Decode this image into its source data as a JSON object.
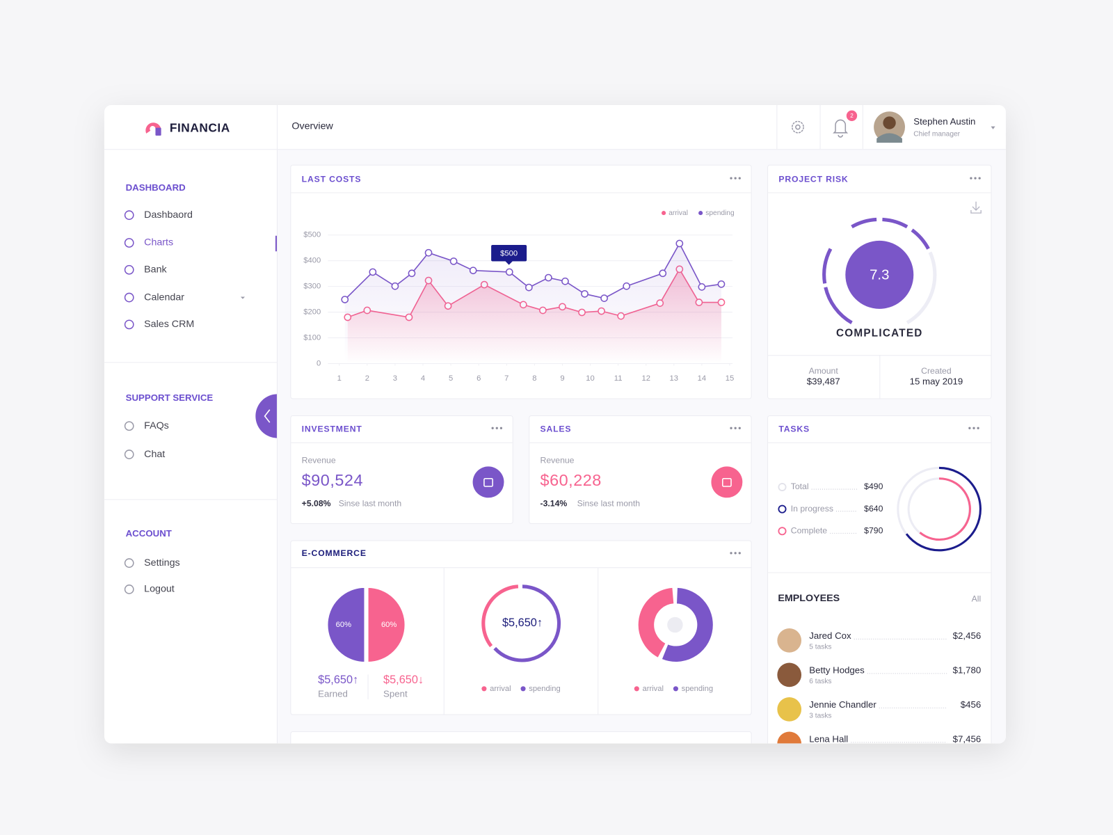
{
  "brand": "FINANCIA",
  "header": {
    "title": "Overview",
    "notifications": "2",
    "user": {
      "name": "Stephen Austin",
      "role": "Chief manager"
    }
  },
  "sidebar": {
    "sections": [
      {
        "title": "DASHBOARD",
        "items": [
          "Dashbaord",
          "Charts",
          "Bank",
          "Calendar",
          "Sales CRM"
        ]
      },
      {
        "title": "SUPPORT SERVICE",
        "items": [
          "FAQs",
          "Chat"
        ]
      },
      {
        "title": "ACCOUNT",
        "items": [
          "Settings",
          "Logout"
        ]
      }
    ]
  },
  "last_costs": {
    "type": "line",
    "title": "LAST COSTS",
    "tooltip": "$500",
    "xlim": [
      1,
      15
    ],
    "xticks": [
      1,
      2,
      3,
      4,
      5,
      6,
      7,
      8,
      9,
      10,
      11,
      12,
      13,
      14,
      15
    ],
    "ylim": [
      0,
      500
    ],
    "yticks": [
      0,
      {
        "value": 100,
        "label": "$100"
      },
      {
        "value": 200,
        "label": "$200"
      },
      {
        "value": 300,
        "label": "$300"
      },
      {
        "value": 400,
        "label": "$400"
      },
      {
        "value": 500,
        "label": "$500"
      }
    ],
    "grid": true,
    "series": [
      {
        "name": "arrival",
        "color": "#f7638f",
        "x": [
          1.3,
          2.0,
          3.5,
          4.2,
          4.9,
          6.2,
          7.6,
          8.3,
          9.0,
          9.7,
          10.4,
          11.1,
          12.5,
          13.2,
          13.9,
          14.7
        ],
        "values": [
          180,
          207,
          180,
          323,
          224,
          307,
          229,
          207,
          221,
          199,
          204,
          185,
          235,
          367,
          238,
          238
        ]
      },
      {
        "name": "spending",
        "color": "#7a56c8",
        "x": [
          1.2,
          2.2,
          3.0,
          3.6,
          4.2,
          5.1,
          5.8,
          7.1,
          7.8,
          8.5,
          9.1,
          9.8,
          10.5,
          11.3,
          12.6,
          13.2,
          14.0,
          14.7
        ],
        "values": [
          249,
          356,
          301,
          351,
          431,
          398,
          362,
          356,
          296,
          334,
          320,
          271,
          254,
          301,
          351,
          467,
          298,
          309
        ]
      }
    ]
  },
  "project_risk": {
    "title": "PROJECT RISK",
    "score": "7.3",
    "status": "COMPLICATED",
    "amount_label": "Amount",
    "amount": "$39,487",
    "created_label": "Created",
    "created": "15 may 2019"
  },
  "investment": {
    "title": "INVESTMENT",
    "label": "Revenue",
    "value": "$90,524",
    "change": "+5.08%",
    "note": "Sinse last month"
  },
  "sales": {
    "title": "SALES",
    "label": "Revenue",
    "value": "$60,228",
    "change": "-3.14%",
    "note": "Sinse last month"
  },
  "ecommerce": {
    "title": "E-COMMERCE",
    "pie": {
      "type": "pie",
      "values": [
        60,
        60
      ],
      "value_labels": [
        "60%",
        "60%"
      ],
      "colors": [
        "#f7638f",
        "#7a56c8"
      ]
    },
    "earned": "$5,650↑",
    "earned_label": "Earned",
    "spent": "$5,650↓",
    "spent_label": "Spent",
    "ring_value": "$5,650↑",
    "legend": [
      "arrival",
      "spending"
    ]
  },
  "tasks": {
    "title": "TASKS",
    "items": [
      {
        "label": "Total",
        "value": "$490"
      },
      {
        "label": "In progress",
        "value": "$640"
      },
      {
        "label": "Complete",
        "value": "$790"
      }
    ]
  },
  "employees": {
    "title": "EMPLOYEES",
    "link": "All",
    "rows": [
      {
        "name": "Jared Cox",
        "tasks": "5 tasks",
        "value": "$2,456"
      },
      {
        "name": "Betty Hodges",
        "tasks": "6 tasks",
        "value": "$1,780"
      },
      {
        "name": "Jennie Chandler",
        "tasks": "3 tasks",
        "value": "$456"
      },
      {
        "name": "Lena Hall",
        "tasks": "",
        "value": "$7,456"
      }
    ]
  }
}
